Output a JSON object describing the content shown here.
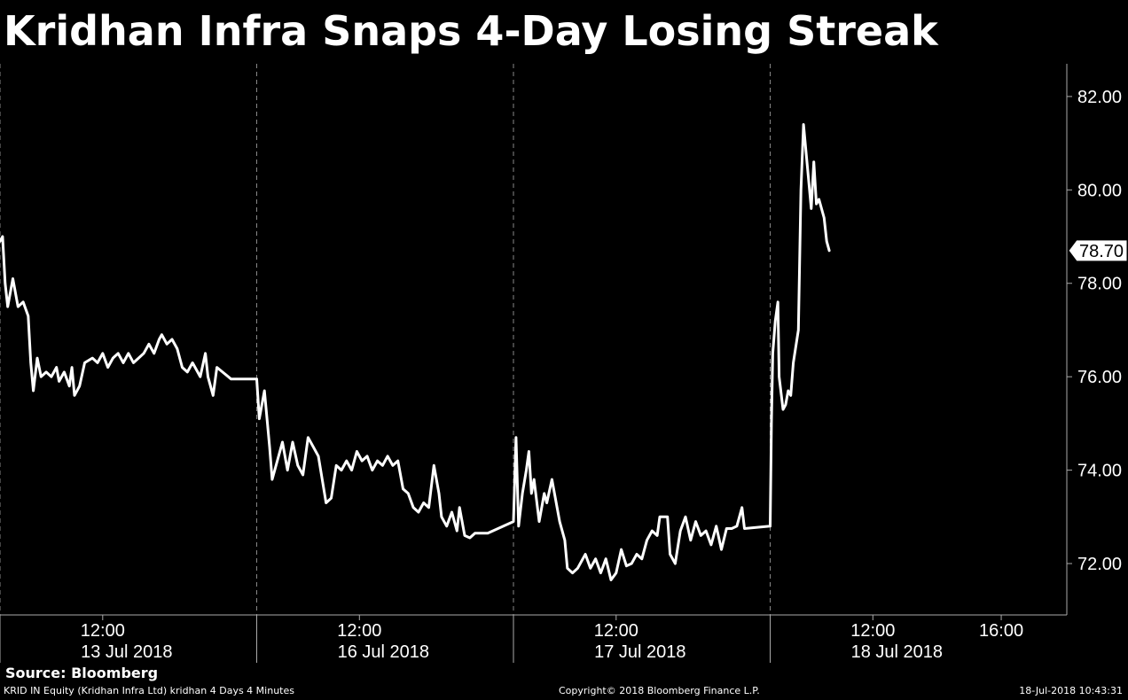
{
  "chart_data": {
    "type": "line",
    "title": "Kridhan Infra Snaps 4-Day Losing Streak",
    "source": "Source: Bloomberg",
    "ylim": [
      70.9,
      82.7
    ],
    "yticks": [
      72,
      74,
      76,
      78,
      80,
      82
    ],
    "ytick_labels": [
      "72.00",
      "74.00",
      "76.00",
      "78.00",
      "80.00",
      "82.00"
    ],
    "last_value": 78.7,
    "last_value_label": "78.70",
    "grid": "vertical day separators (dashed)",
    "day_labels": [
      {
        "time": "12:00",
        "date": "13 Jul 2018"
      },
      {
        "time": "12:00",
        "date": "16 Jul 2018"
      },
      {
        "time": "12:00",
        "date": "17 Jul 2018"
      },
      {
        "time": "12:00",
        "date": "18 Jul 2018"
      }
    ],
    "extra_time_label": "16:00",
    "series": [
      {
        "unit_note": "x = trading session day index (0..4), y = price",
        "points": [
          [
            0.0,
            78.9
          ],
          [
            0.01,
            79.0
          ],
          [
            0.02,
            78.0
          ],
          [
            0.03,
            77.5
          ],
          [
            0.05,
            78.1
          ],
          [
            0.07,
            77.5
          ],
          [
            0.09,
            77.6
          ],
          [
            0.11,
            77.3
          ],
          [
            0.12,
            76.3
          ],
          [
            0.13,
            75.7
          ],
          [
            0.145,
            76.4
          ],
          [
            0.16,
            76.0
          ],
          [
            0.18,
            76.1
          ],
          [
            0.2,
            76.0
          ],
          [
            0.22,
            76.2
          ],
          [
            0.23,
            75.9
          ],
          [
            0.25,
            76.1
          ],
          [
            0.27,
            75.8
          ],
          [
            0.28,
            76.2
          ],
          [
            0.29,
            75.6
          ],
          [
            0.31,
            75.8
          ],
          [
            0.33,
            76.3
          ],
          [
            0.36,
            76.4
          ],
          [
            0.38,
            76.3
          ],
          [
            0.4,
            76.5
          ],
          [
            0.42,
            76.2
          ],
          [
            0.44,
            76.4
          ],
          [
            0.46,
            76.5
          ],
          [
            0.48,
            76.3
          ],
          [
            0.5,
            76.5
          ],
          [
            0.52,
            76.3
          ],
          [
            0.54,
            76.4
          ],
          [
            0.56,
            76.5
          ],
          [
            0.58,
            76.7
          ],
          [
            0.6,
            76.5
          ],
          [
            0.62,
            76.8
          ],
          [
            0.63,
            76.9
          ],
          [
            0.65,
            76.7
          ],
          [
            0.67,
            76.8
          ],
          [
            0.69,
            76.6
          ],
          [
            0.71,
            76.2
          ],
          [
            0.73,
            76.1
          ],
          [
            0.75,
            76.3
          ],
          [
            0.77,
            76.1
          ],
          [
            0.78,
            76.0
          ],
          [
            0.8,
            76.5
          ],
          [
            0.81,
            76.0
          ],
          [
            0.83,
            75.6
          ],
          [
            0.845,
            76.2
          ],
          [
            0.9,
            75.95
          ],
          [
            1.0,
            75.95
          ],
          [
            1.01,
            75.1
          ],
          [
            1.03,
            75.7
          ],
          [
            1.05,
            74.5
          ],
          [
            1.06,
            73.8
          ],
          [
            1.08,
            74.2
          ],
          [
            1.1,
            74.6
          ],
          [
            1.12,
            74.0
          ],
          [
            1.14,
            74.6
          ],
          [
            1.16,
            74.1
          ],
          [
            1.18,
            73.9
          ],
          [
            1.2,
            74.7
          ],
          [
            1.22,
            74.5
          ],
          [
            1.24,
            74.3
          ],
          [
            1.27,
            73.3
          ],
          [
            1.29,
            73.4
          ],
          [
            1.31,
            74.1
          ],
          [
            1.33,
            74.0
          ],
          [
            1.35,
            74.2
          ],
          [
            1.37,
            74.0
          ],
          [
            1.39,
            74.4
          ],
          [
            1.41,
            74.2
          ],
          [
            1.43,
            74.3
          ],
          [
            1.45,
            74.0
          ],
          [
            1.47,
            74.2
          ],
          [
            1.49,
            74.1
          ],
          [
            1.51,
            74.3
          ],
          [
            1.53,
            74.1
          ],
          [
            1.55,
            74.2
          ],
          [
            1.57,
            73.6
          ],
          [
            1.59,
            73.5
          ],
          [
            1.61,
            73.2
          ],
          [
            1.63,
            73.1
          ],
          [
            1.65,
            73.3
          ],
          [
            1.67,
            73.2
          ],
          [
            1.69,
            74.1
          ],
          [
            1.71,
            73.5
          ],
          [
            1.72,
            73.0
          ],
          [
            1.74,
            72.8
          ],
          [
            1.76,
            73.1
          ],
          [
            1.78,
            72.7
          ],
          [
            1.79,
            73.2
          ],
          [
            1.81,
            72.6
          ],
          [
            1.83,
            72.55
          ],
          [
            1.85,
            72.65
          ],
          [
            1.9,
            72.65
          ],
          [
            1.98,
            72.85
          ],
          [
            2.0,
            72.9
          ],
          [
            2.01,
            74.7
          ],
          [
            2.02,
            72.8
          ],
          [
            2.035,
            73.5
          ],
          [
            2.05,
            74.0
          ],
          [
            2.06,
            74.4
          ],
          [
            2.07,
            73.5
          ],
          [
            2.08,
            73.8
          ],
          [
            2.1,
            72.9
          ],
          [
            2.12,
            73.5
          ],
          [
            2.13,
            73.3
          ],
          [
            2.15,
            73.8
          ],
          [
            2.17,
            73.2
          ],
          [
            2.18,
            72.9
          ],
          [
            2.2,
            72.5
          ],
          [
            2.21,
            71.9
          ],
          [
            2.23,
            71.8
          ],
          [
            2.25,
            71.9
          ],
          [
            2.27,
            72.1
          ],
          [
            2.28,
            72.2
          ],
          [
            2.3,
            71.9
          ],
          [
            2.32,
            72.1
          ],
          [
            2.34,
            71.8
          ],
          [
            2.36,
            72.1
          ],
          [
            2.38,
            71.65
          ],
          [
            2.4,
            71.8
          ],
          [
            2.42,
            72.3
          ],
          [
            2.44,
            71.95
          ],
          [
            2.46,
            72.0
          ],
          [
            2.48,
            72.2
          ],
          [
            2.5,
            72.1
          ],
          [
            2.52,
            72.5
          ],
          [
            2.54,
            72.7
          ],
          [
            2.56,
            72.6
          ],
          [
            2.57,
            73.0
          ],
          [
            2.6,
            73.0
          ],
          [
            2.61,
            72.2
          ],
          [
            2.63,
            72.0
          ],
          [
            2.65,
            72.7
          ],
          [
            2.67,
            73.0
          ],
          [
            2.69,
            72.5
          ],
          [
            2.71,
            72.9
          ],
          [
            2.73,
            72.6
          ],
          [
            2.75,
            72.7
          ],
          [
            2.77,
            72.4
          ],
          [
            2.79,
            72.8
          ],
          [
            2.81,
            72.3
          ],
          [
            2.83,
            72.75
          ],
          [
            2.85,
            72.75
          ],
          [
            2.87,
            72.8
          ],
          [
            2.89,
            73.2
          ],
          [
            2.9,
            72.75
          ],
          [
            3.0,
            72.8
          ],
          [
            3.005,
            75.0
          ],
          [
            3.01,
            76.5
          ],
          [
            3.02,
            77.2
          ],
          [
            3.03,
            77.6
          ],
          [
            3.035,
            76.0
          ],
          [
            3.05,
            75.3
          ],
          [
            3.06,
            75.4
          ],
          [
            3.07,
            75.7
          ],
          [
            3.08,
            75.6
          ],
          [
            3.09,
            76.3
          ],
          [
            3.11,
            77.0
          ],
          [
            3.12,
            80.0
          ],
          [
            3.13,
            81.4
          ],
          [
            3.14,
            80.8
          ],
          [
            3.15,
            80.2
          ],
          [
            3.16,
            79.6
          ],
          [
            3.17,
            80.6
          ],
          [
            3.18,
            79.7
          ],
          [
            3.19,
            79.8
          ],
          [
            3.2,
            79.6
          ],
          [
            3.21,
            79.4
          ],
          [
            3.22,
            78.9
          ],
          [
            3.23,
            78.7
          ]
        ]
      }
    ]
  },
  "footer": {
    "left": "KRID IN Equity (Kridhan Infra Ltd) kridhan 4 Days 4 Minutes",
    "center": "Copyright© 2018 Bloomberg Finance L.P.",
    "right": "18-Jul-2018 10:43:31"
  }
}
